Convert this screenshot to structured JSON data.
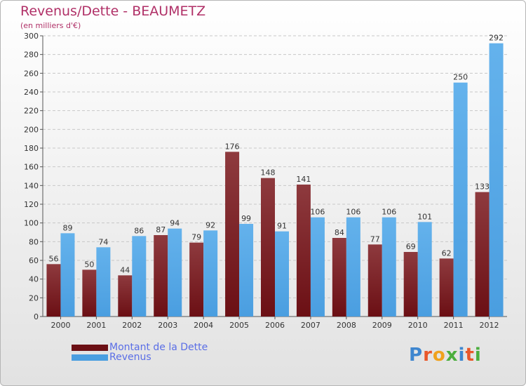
{
  "header": {
    "title": "Revenus/Dette - BEAUMETZ",
    "subtitle": "(en milliers d'€)"
  },
  "legend": {
    "debt_label": "Montant de la Dette",
    "revenue_label": "Revenus"
  },
  "brand": {
    "logo_letters": [
      "P",
      "r",
      "o",
      "x",
      "i",
      "t",
      "i"
    ],
    "logo_colors": [
      "#3e86cf",
      "#e9572a",
      "#f0a21d",
      "#4bae3e",
      "#3e86cf",
      "#e9572a",
      "#4bae3e"
    ]
  },
  "colors": {
    "debt": "#6b0f14",
    "debt_light": "#8e3a3e",
    "revenue": "#4a9ee0",
    "revenue_light": "#64b2ec",
    "title": "#b03067",
    "legend_text": "#5a6ee6"
  },
  "chart_data": {
    "type": "bar",
    "title": "Revenus/Dette - BEAUMETZ",
    "subtitle": "(en milliers d'€)",
    "categories": [
      "2000",
      "2001",
      "2002",
      "2003",
      "2004",
      "2005",
      "2006",
      "2007",
      "2008",
      "2009",
      "2010",
      "2011",
      "2012"
    ],
    "series": [
      {
        "name": "Montant de la Dette",
        "values": [
          56,
          50,
          44,
          87,
          79,
          176,
          148,
          141,
          84,
          77,
          69,
          62,
          133
        ]
      },
      {
        "name": "Revenus",
        "values": [
          89,
          74,
          86,
          94,
          92,
          99,
          91,
          106,
          106,
          106,
          101,
          250,
          292
        ]
      }
    ],
    "ylim": [
      0,
      300
    ],
    "yticks": [
      0,
      20,
      40,
      60,
      80,
      100,
      120,
      140,
      160,
      180,
      200,
      220,
      240,
      260,
      280,
      300
    ],
    "grid": true,
    "legend_position": "bottom-left",
    "data_labels": true
  }
}
